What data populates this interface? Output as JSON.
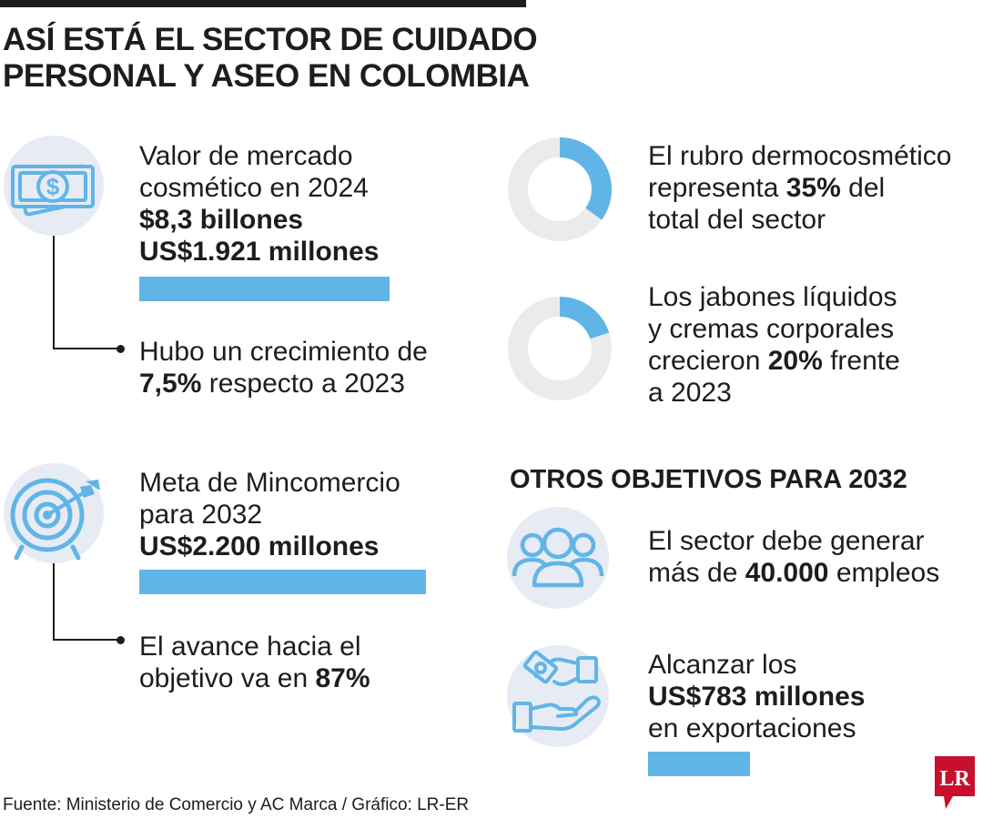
{
  "header": {
    "title_line1": "ASÍ ESTÁ EL SECTOR DE CUIDADO",
    "title_line2": "PERSONAL Y ASEO EN COLOMBIA"
  },
  "market": {
    "icon": "money-bill-icon",
    "line1": "Valor de mercado",
    "line2": "cosmético en 2024",
    "value_cop": "$8,3 billones",
    "value_usd": "US$1.921 millones",
    "bar_fraction": 0.873
  },
  "growth": {
    "line1": "Hubo un crecimiento de",
    "pct": "7,5%",
    "line2_rest": " respecto a 2023"
  },
  "goal": {
    "icon": "target-icon",
    "line1": "Meta de Mincomercio",
    "line2": "para 2032",
    "value_usd": "US$2.200 millones",
    "bar_fraction": 1.0
  },
  "progress": {
    "line1": "El avance hacia el",
    "line2_start": "objetivo va en ",
    "pct": "87%"
  },
  "dermo": {
    "line1": "El rubro dermocosmético",
    "line2_start": "representa ",
    "pct": "35%",
    "line2_end": " del",
    "line3": "total del sector",
    "donut_fraction": 0.35
  },
  "soaps": {
    "line1": "Los jabones líquidos",
    "line2": "y cremas corporales",
    "line3_start": "crecieron ",
    "pct": "20%",
    "line3_end": " frente",
    "line4": "a 2023",
    "donut_fraction": 0.2
  },
  "other_goals": {
    "heading": "OTROS OBJETIVOS PARA 2032",
    "jobs": {
      "icon": "people-group-icon",
      "line1": "El sector debe generar",
      "line2_start": "más de ",
      "value": "40.000",
      "line2_end": " empleos"
    },
    "exports": {
      "icon": "money-hands-icon",
      "line1": "Alcanzar los",
      "value": "US$783 millones",
      "line3": "en exportaciones",
      "bar_fraction": 0.356
    }
  },
  "footer": {
    "source": "Fuente: Ministerio de Comercio y AC Marca / Gráfico: LR-ER",
    "logo_text": "LR"
  },
  "colors": {
    "accent": "#61b5e6",
    "circle": "#e7ebf4",
    "donut_track": "#ebebeb",
    "text": "#1d1d1b",
    "logo_red": "#c8102e"
  }
}
